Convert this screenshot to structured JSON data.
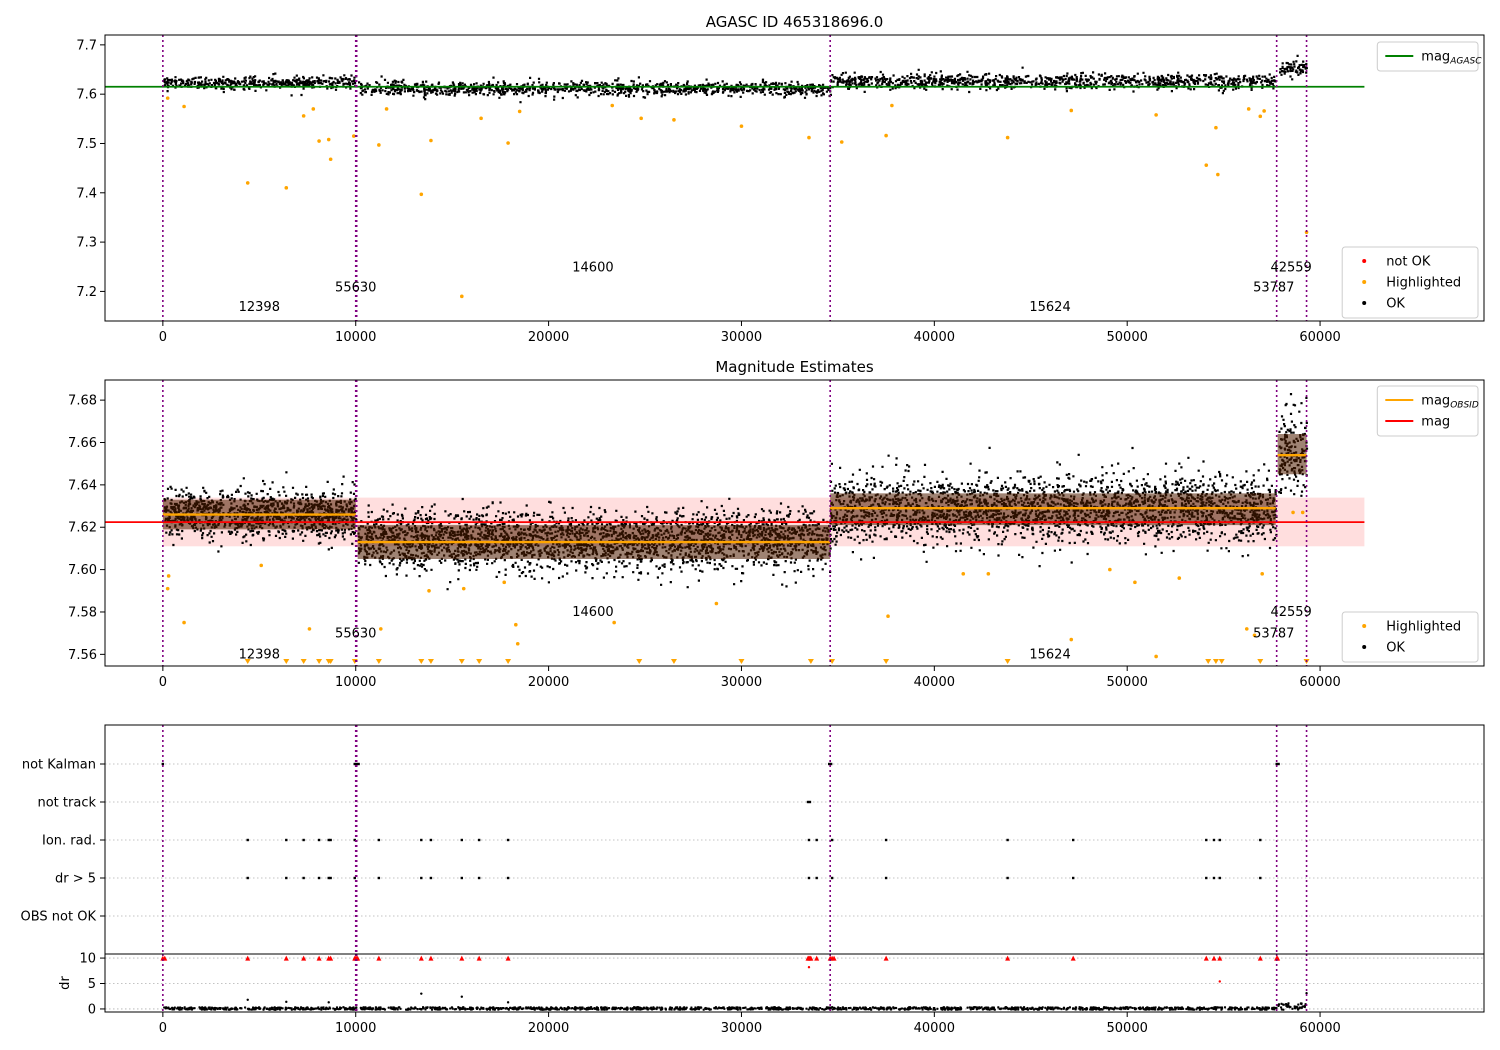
{
  "chart_data": [
    {
      "type": "scatter",
      "title": "AGASC ID 465318696.0",
      "ylim": [
        7.14,
        7.72
      ],
      "xlim": [
        -3000,
        68500
      ],
      "xticks": [
        0,
        10000,
        20000,
        30000,
        40000,
        50000,
        60000
      ],
      "yticks": [
        7.2,
        7.3,
        7.4,
        7.5,
        7.6,
        7.7
      ],
      "ytick_labels": [
        "7.2",
        "7.3",
        "7.4",
        "7.5",
        "7.6",
        "7.7"
      ],
      "legend_top": {
        "placement": "top-right",
        "entries": [
          {
            "label": "mag",
            "sub": "AGASC",
            "color": "#008000"
          }
        ]
      },
      "legend_bottom": {
        "placement": "bottom-right",
        "entries": [
          {
            "label": "not OK",
            "color": "#ff0000"
          },
          {
            "label": "Highlighted",
            "color": "#ffa500"
          },
          {
            "label": "OK",
            "color": "#000000"
          }
        ]
      },
      "agasc_mag": 7.615,
      "segment_bounds": [
        0,
        10000,
        10050,
        34600,
        57750,
        59300
      ],
      "segment_labels": [
        {
          "text": "12398",
          "x": 5000,
          "y": 7.16
        },
        {
          "text": "55630",
          "x": 10000,
          "y": 7.2
        },
        {
          "text": "14600",
          "x": 22300,
          "y": 7.24
        },
        {
          "text": "15624",
          "x": 46000,
          "y": 7.16
        },
        {
          "text": "53787",
          "x": 57600,
          "y": 7.2
        },
        {
          "text": "42559",
          "x": 58500,
          "y": 7.24
        }
      ],
      "bands": [
        {
          "x0": 0,
          "x1": 10000,
          "lo": 7.612,
          "hi": 7.638
        },
        {
          "x0": 10100,
          "x1": 34600,
          "lo": 7.598,
          "hi": 7.628
        },
        {
          "x0": 34600,
          "x1": 57700,
          "lo": 7.612,
          "hi": 7.643
        },
        {
          "x0": 57800,
          "x1": 59300,
          "lo": 7.632,
          "hi": 7.672
        }
      ],
      "highlighted_points": [
        [
          250,
          7.592
        ],
        [
          1100,
          7.575
        ],
        [
          4400,
          7.42
        ],
        [
          6400,
          7.41
        ],
        [
          7300,
          7.556
        ],
        [
          8100,
          7.505
        ],
        [
          8600,
          7.508
        ],
        [
          8700,
          7.468
        ],
        [
          7800,
          7.57
        ],
        [
          9900,
          7.515
        ],
        [
          11200,
          7.497
        ],
        [
          11600,
          7.57
        ],
        [
          13400,
          7.397
        ],
        [
          13900,
          7.506
        ],
        [
          15500,
          7.19
        ],
        [
          16500,
          7.551
        ],
        [
          17900,
          7.501
        ],
        [
          18500,
          7.565
        ],
        [
          23300,
          7.577
        ],
        [
          24800,
          7.551
        ],
        [
          26500,
          7.548
        ],
        [
          30000,
          7.535
        ],
        [
          33500,
          7.512
        ],
        [
          35200,
          7.503
        ],
        [
          37500,
          7.516
        ],
        [
          37800,
          7.577
        ],
        [
          43800,
          7.512
        ],
        [
          47100,
          7.567
        ],
        [
          51500,
          7.558
        ],
        [
          54100,
          7.456
        ],
        [
          54600,
          7.532
        ],
        [
          54700,
          7.437
        ],
        [
          56900,
          7.555
        ],
        [
          57100,
          7.566
        ],
        [
          56300,
          7.57
        ],
        [
          59300,
          7.32
        ]
      ]
    },
    {
      "type": "scatter",
      "title": "Magnitude Estimates",
      "ylim": [
        7.5545,
        7.6895
      ],
      "xlim": [
        -3000,
        68500
      ],
      "xticks": [
        0,
        10000,
        20000,
        30000,
        40000,
        50000,
        60000
      ],
      "yticks": [
        7.56,
        7.58,
        7.6,
        7.62,
        7.64,
        7.66,
        7.68
      ],
      "ytick_labels": [
        "7.56",
        "7.58",
        "7.60",
        "7.62",
        "7.64",
        "7.66",
        "7.68"
      ],
      "legend_top": {
        "placement": "top-right",
        "entries": [
          {
            "label": "mag",
            "sub": "OBSID",
            "color": "#ffa500"
          },
          {
            "label": "mag",
            "color": "#ff0000"
          }
        ]
      },
      "legend_bottom": {
        "placement": "bottom-right",
        "entries": [
          {
            "label": "Highlighted",
            "color": "#ffa500"
          },
          {
            "label": "OK",
            "color": "#000000"
          }
        ]
      },
      "mag": 7.6224,
      "mag_band": [
        7.611,
        7.634
      ],
      "segment_bounds": [
        0,
        10000,
        10050,
        34600,
        57750,
        59300
      ],
      "segment_labels": [
        {
          "text": "12398",
          "x": 5000,
          "y": 7.558
        },
        {
          "text": "55630",
          "x": 10000,
          "y": 7.568
        },
        {
          "text": "14600",
          "x": 22300,
          "y": 7.578
        },
        {
          "text": "15624",
          "x": 46000,
          "y": 7.558
        },
        {
          "text": "53787",
          "x": 57600,
          "y": 7.568
        },
        {
          "text": "42559",
          "x": 58500,
          "y": 7.578
        }
      ],
      "obsid_segments": [
        {
          "x0": 0,
          "x1": 10000,
          "mag": 7.626,
          "lo": 7.615,
          "hi": 7.638,
          "inner_lo": 7.619,
          "inner_hi": 7.633
        },
        {
          "x0": 10100,
          "x1": 34600,
          "mag": 7.613,
          "lo": 7.6,
          "hi": 7.628,
          "inner_lo": 7.605,
          "inner_hi": 7.621
        },
        {
          "x0": 34600,
          "x1": 57700,
          "mag": 7.629,
          "lo": 7.613,
          "hi": 7.645,
          "inner_lo": 7.621,
          "inner_hi": 7.636
        },
        {
          "x0": 57800,
          "x1": 59300,
          "mag": 7.654,
          "lo": 7.635,
          "hi": 7.675,
          "inner_lo": 7.645,
          "inner_hi": 7.664
        }
      ],
      "highlighted_points": [
        [
          300,
          7.597
        ],
        [
          250,
          7.591
        ],
        [
          1100,
          7.575
        ],
        [
          7600,
          7.572
        ],
        [
          5100,
          7.602
        ],
        [
          11300,
          7.572
        ],
        [
          13800,
          7.59
        ],
        [
          15600,
          7.591
        ],
        [
          17700,
          7.594
        ],
        [
          18300,
          7.574
        ],
        [
          18400,
          7.565
        ],
        [
          23400,
          7.575
        ],
        [
          28700,
          7.584
        ],
        [
          37600,
          7.578
        ],
        [
          41500,
          7.598
        ],
        [
          42800,
          7.598
        ],
        [
          47100,
          7.567
        ],
        [
          49100,
          7.6
        ],
        [
          50400,
          7.594
        ],
        [
          51500,
          7.559
        ],
        [
          52700,
          7.596
        ],
        [
          56200,
          7.572
        ],
        [
          56600,
          7.569
        ],
        [
          57000,
          7.598
        ],
        [
          58600,
          7.627
        ],
        [
          59100,
          7.627
        ]
      ],
      "clipped_markers_x": [
        4400,
        6400,
        7300,
        8100,
        8600,
        8700,
        9950,
        11200,
        13400,
        13900,
        15500,
        16400,
        17900,
        24700,
        26500,
        30000,
        33600,
        34700,
        37500,
        43800,
        54200,
        54600,
        54900,
        56900,
        59300
      ]
    },
    {
      "type": "scatter",
      "title": "",
      "xlim": [
        -3000,
        68500
      ],
      "xticks": [
        0,
        10000,
        20000,
        30000,
        40000,
        50000,
        60000
      ],
      "flag_rows": [
        "not Kalman",
        "not track",
        "Ion. rad.",
        "dr > 5",
        "OBS not OK"
      ],
      "flag_points": {
        "not Kalman": [
          0,
          9950,
          10050,
          10150,
          34550,
          34650,
          57750,
          57850
        ],
        "not track": [
          33450,
          33550
        ],
        "Ion. rad.": [
          4400,
          6400,
          7300,
          8100,
          8600,
          8700,
          9950,
          11200,
          13400,
          13900,
          15500,
          16400,
          17900,
          33500,
          33900,
          34700,
          37500,
          43800,
          47200,
          54100,
          54500,
          54800,
          56900
        ],
        "dr > 5": [
          4400,
          6400,
          7300,
          8100,
          8600,
          8700,
          9950,
          11200,
          13400,
          13900,
          15500,
          16400,
          17900,
          33500,
          33900,
          34700,
          37500,
          43800,
          47200,
          54100,
          54500,
          54800,
          56900
        ],
        "OBS not OK": []
      },
      "dr_ylabel": "dr",
      "dr_ylim": [
        -0.6,
        10.8
      ],
      "dr_yticks": [
        0,
        5,
        10
      ],
      "dr_ytick_labels": [
        "0",
        "5",
        "10"
      ],
      "dr_capped_x": [
        0,
        100,
        4400,
        6400,
        7300,
        8100,
        8600,
        8700,
        9950,
        10000,
        10050,
        10100,
        11200,
        13400,
        13900,
        15500,
        16400,
        17900,
        33450,
        33500,
        33550,
        33600,
        33900,
        34600,
        34700,
        34800,
        37500,
        43800,
        47200,
        54100,
        54500,
        54800,
        56900,
        57750,
        57800
      ],
      "dr_outliers": [
        [
          4400,
          1.8
        ],
        [
          8600,
          1.3
        ],
        [
          13400,
          3.0
        ],
        [
          15500,
          2.4
        ],
        [
          6400,
          1.4
        ],
        [
          17900,
          1.3
        ],
        [
          33500,
          8.2
        ],
        [
          54800,
          5.4
        ],
        [
          59300,
          3.1
        ]
      ],
      "segment_bounds": [
        0,
        10000,
        10050,
        34600,
        57750,
        59300
      ]
    }
  ]
}
